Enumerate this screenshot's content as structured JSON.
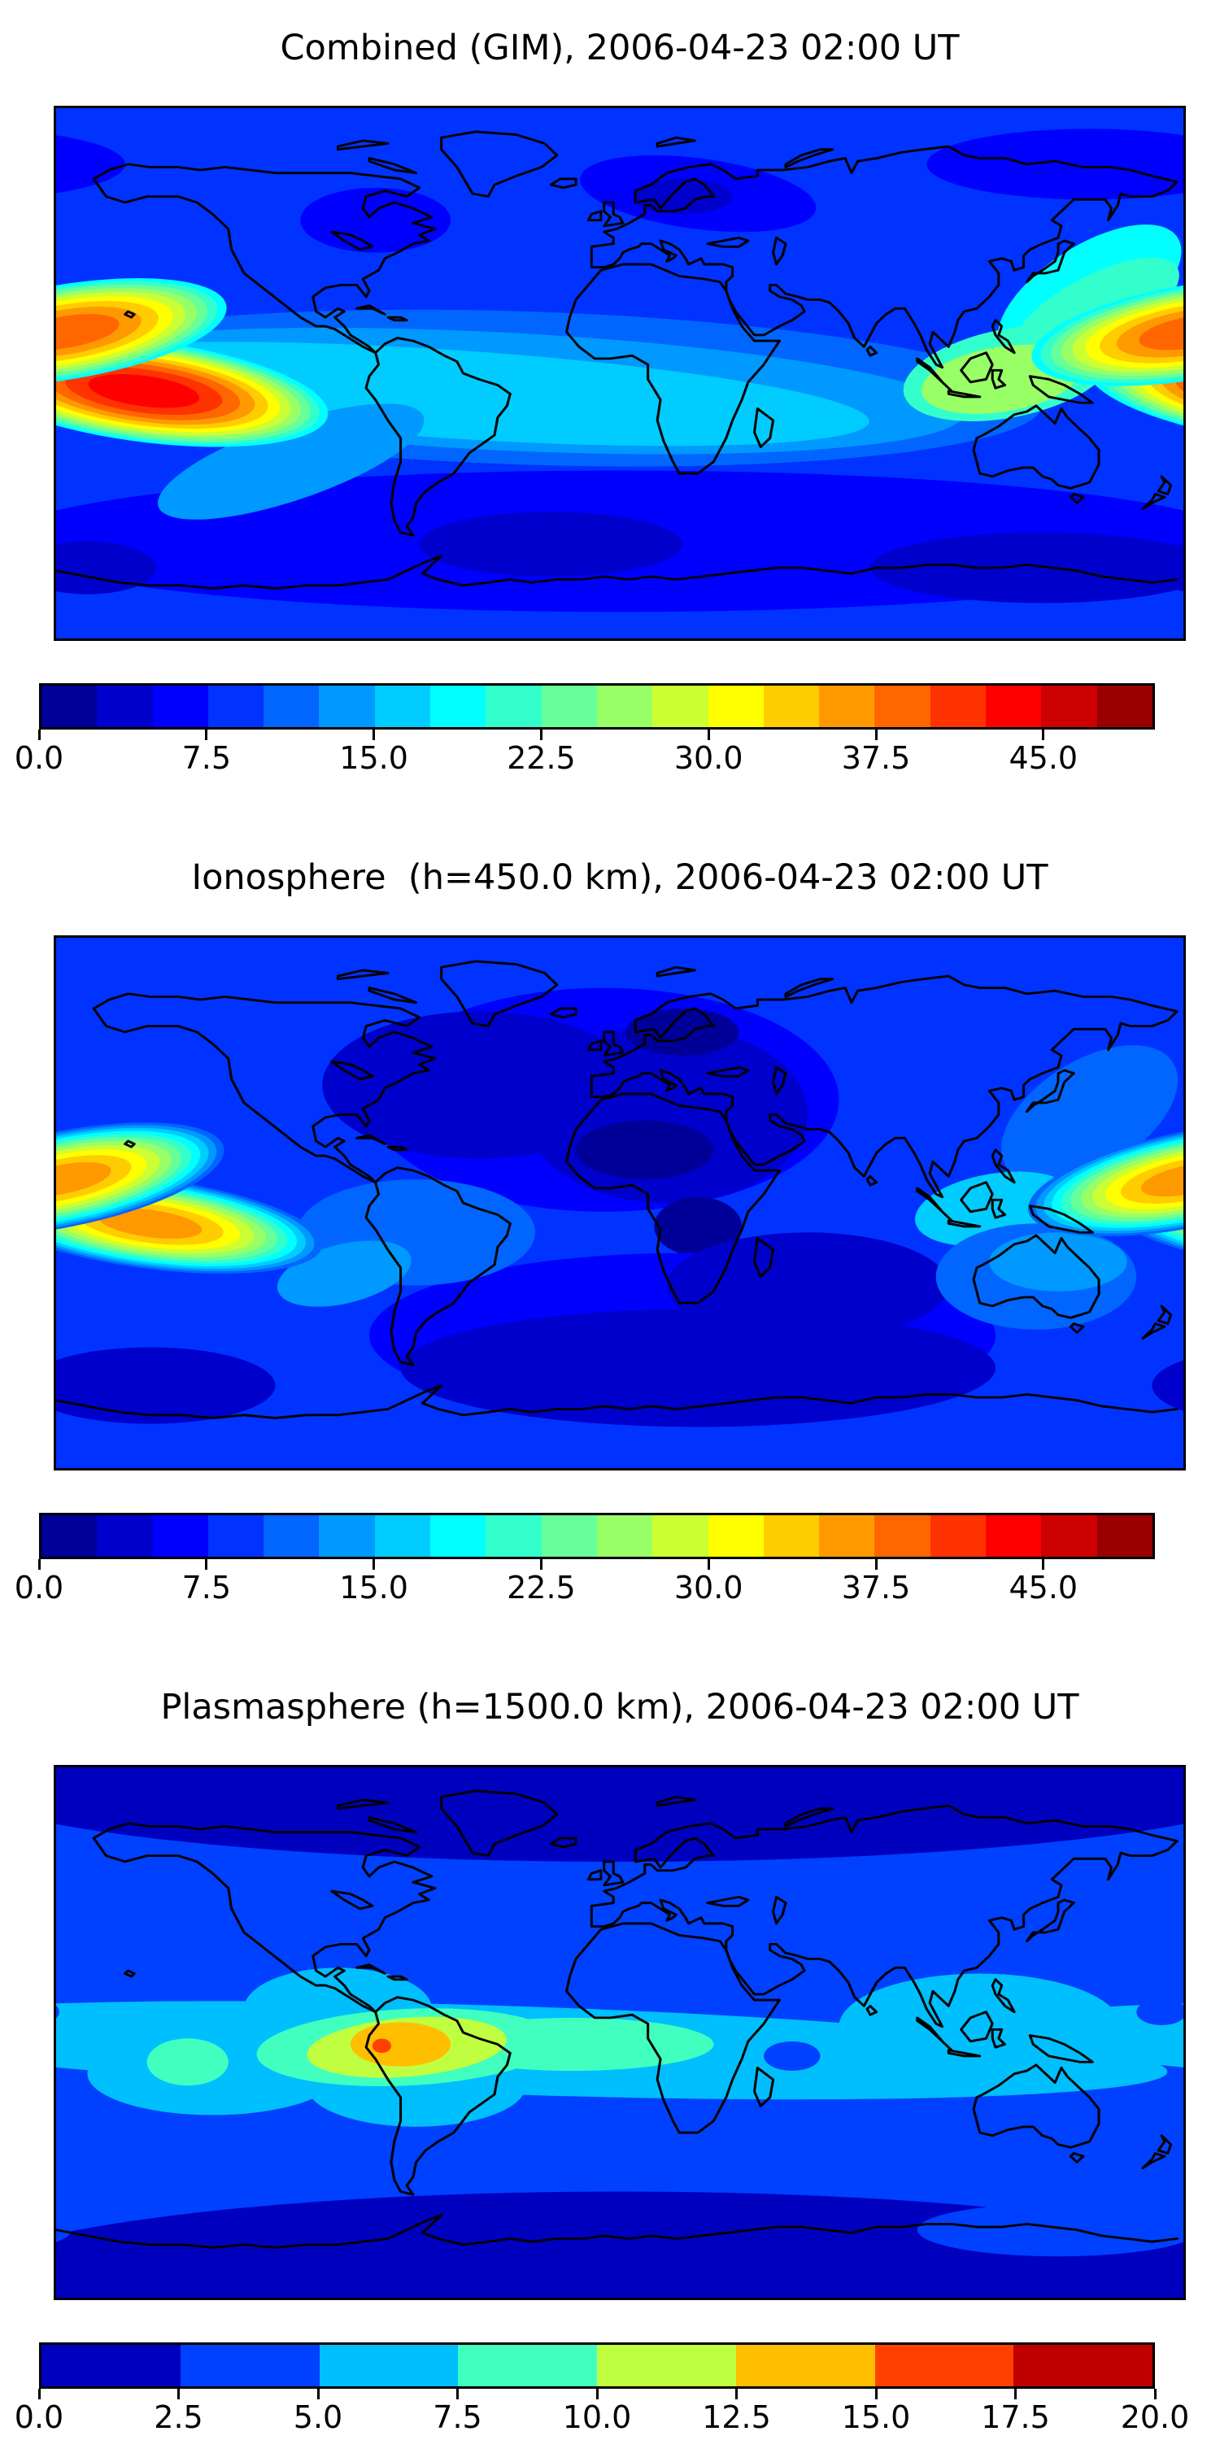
{
  "chart_data": {
    "type": "heatmap",
    "subtype": "filled-contour world maps (global TEC distribution), matplotlib-style figure, jet colormap, equirectangular projection lon -180..180 / lat -90..90, black coastlines, horizontal discrete colorbars below each map",
    "colormap": "jet",
    "patch_format": "patches are ellipses [lon_center_deg, lat_center_deg, rx_deg, ry_deg, rotation_deg(west-end-up positive), contour_level]; hotspots are nested contour rings from 'start' level up to 'peak' value",
    "panels": [
      {
        "title": "Combined (GIM), 2006-04-23 02:00 UT",
        "value_range": [
          0,
          50
        ],
        "contour_interval": 2.5,
        "colorbar_ticks": [
          0.0,
          7.5,
          15.0,
          22.5,
          30.0,
          37.5,
          45.0
        ],
        "colorbar_tick_labels": [
          "0.0",
          "7.5",
          "15.0",
          "22.5",
          "30.0",
          "37.5",
          "45.0"
        ],
        "base_level": 7.5,
        "patches": [
          [
            25,
            61,
            38,
            12,
            8,
            5
          ],
          [
            20,
            60,
            16,
            6,
            0,
            2.5
          ],
          [
            -78,
            52,
            24,
            11,
            0,
            5
          ],
          [
            150,
            71,
            52,
            12,
            0,
            5
          ],
          [
            0,
            -57,
            200,
            24,
            0,
            5
          ],
          [
            -22,
            -58,
            42,
            11,
            0,
            2.5
          ],
          [
            135,
            -66,
            55,
            12,
            0,
            2.5
          ],
          [
            -170,
            -66,
            22,
            9,
            0,
            2.5
          ],
          [
            -30,
            -5,
            165,
            26,
            2,
            10
          ],
          [
            -40,
            -6,
            150,
            20,
            3,
            12.5
          ],
          [
            -55,
            -7,
            135,
            15,
            4,
            15
          ],
          [
            -105,
            -30,
            45,
            13,
            -20,
            12.5
          ],
          [
            150,
            27,
            34,
            16,
            -35,
            17.5
          ],
          [
            152,
            21,
            30,
            12,
            -30,
            20
          ],
          [
            124,
            0,
            34,
            15,
            -12,
            20
          ],
          [
            122,
            -2,
            26,
            11,
            -10,
            25
          ]
        ],
        "hotspots": [
          {
            "name": "pacific-equatorial-anomaly",
            "lon": -152,
            "lat": -6,
            "rx": 62,
            "ry": 18,
            "rot": 8,
            "start": 15,
            "peak": 42.5
          },
          {
            "name": "east-asia-equatorial-anomaly",
            "lon": 183,
            "lat": 14,
            "rx": 55,
            "ry": 17,
            "rot": -10,
            "start": 15,
            "peak": 37.5
          }
        ]
      },
      {
        "title": "Ionosphere  (h=450.0 km), 2006-04-23 02:00 UT",
        "value_range": [
          0,
          50
        ],
        "contour_interval": 2.5,
        "colorbar_ticks": [
          0.0,
          7.5,
          15.0,
          22.5,
          30.0,
          37.5,
          45.0
        ],
        "colorbar_tick_labels": [
          "0.0",
          "7.5",
          "15.0",
          "22.5",
          "30.0",
          "37.5",
          "45.0"
        ],
        "base_level": 7.5,
        "patches": [
          [
            -5,
            35,
            75,
            38,
            0,
            5
          ],
          [
            -45,
            40,
            50,
            25,
            0,
            2.5
          ],
          [
            15,
            30,
            45,
            30,
            0,
            2.5
          ],
          [
            20,
            58,
            18,
            8,
            0,
            0
          ],
          [
            8,
            18,
            22,
            10,
            0,
            0
          ],
          [
            25,
            -8,
            14,
            10,
            0,
            0
          ],
          [
            20,
            -45,
            100,
            28,
            0,
            5
          ],
          [
            25,
            -56,
            95,
            20,
            0,
            2.5
          ],
          [
            60,
            -28,
            45,
            18,
            0,
            2.5
          ],
          [
            -150,
            -62,
            40,
            13,
            0,
            2.5
          ],
          [
            -65,
            -10,
            38,
            18,
            0,
            10
          ],
          [
            -88,
            -24,
            22,
            10,
            -15,
            12.5
          ],
          [
            150,
            30,
            32,
            18,
            -35,
            10
          ],
          [
            120,
            -2,
            26,
            12,
            -10,
            15
          ],
          [
            133,
            -25,
            32,
            18,
            0,
            10
          ],
          [
            140,
            -20,
            22,
            10,
            0,
            12.5
          ]
        ],
        "hotspots": [
          {
            "name": "pacific-equatorial-anomaly",
            "lon": -150,
            "lat": -7,
            "rx": 58,
            "ry": 16,
            "rot": 8,
            "start": 7.5,
            "peak": 35
          },
          {
            "name": "east-asia-equatorial-anomaly",
            "lon": 182,
            "lat": 8,
            "rx": 55,
            "ry": 17,
            "rot": -12,
            "start": 7.5,
            "peak": 35
          }
        ]
      },
      {
        "title": "Plasmasphere (h=1500.0 km), 2006-04-23 02:00 UT",
        "value_range": [
          0,
          20
        ],
        "contour_interval": 2.5,
        "colorbar_ticks": [
          0.0,
          2.5,
          5.0,
          7.5,
          10.0,
          12.5,
          15.0,
          17.5,
          20.0
        ],
        "colorbar_tick_labels": [
          "0.0",
          "2.5",
          "5.0",
          "7.5",
          "10.0",
          "12.5",
          "15.0",
          "17.5",
          "20.0"
        ],
        "base_level": 2.5,
        "patches": [
          [
            0,
            88,
            220,
            30,
            0,
            0
          ],
          [
            0,
            -88,
            220,
            34,
            0,
            0
          ],
          [
            140,
            -67,
            45,
            9,
            0,
            2.5
          ],
          [
            -35,
            -6,
            210,
            15,
            2,
            5
          ],
          [
            -130,
            -14,
            40,
            14,
            0,
            5
          ],
          [
            115,
            2,
            45,
            18,
            0,
            5
          ],
          [
            -90,
            8,
            30,
            14,
            0,
            5
          ],
          [
            -65,
            -18,
            35,
            14,
            0,
            5
          ],
          [
            -68,
            -5,
            48,
            13,
            -3,
            7.5
          ],
          [
            -15,
            -4,
            45,
            9,
            0,
            7.5
          ],
          [
            -138,
            -10,
            13,
            8,
            0,
            7.5
          ],
          [
            -68,
            -5,
            32,
            10,
            -5,
            10
          ],
          [
            -70,
            -4,
            16,
            7.5,
            0,
            12.5
          ],
          [
            -76,
            -4.5,
            3,
            2.4,
            0,
            15
          ],
          [
            55,
            -8,
            9,
            5,
            0,
            2.5
          ],
          [
            173,
            7,
            8,
            4.5,
            0,
            2.5
          ]
        ],
        "hotspots": []
      }
    ]
  }
}
